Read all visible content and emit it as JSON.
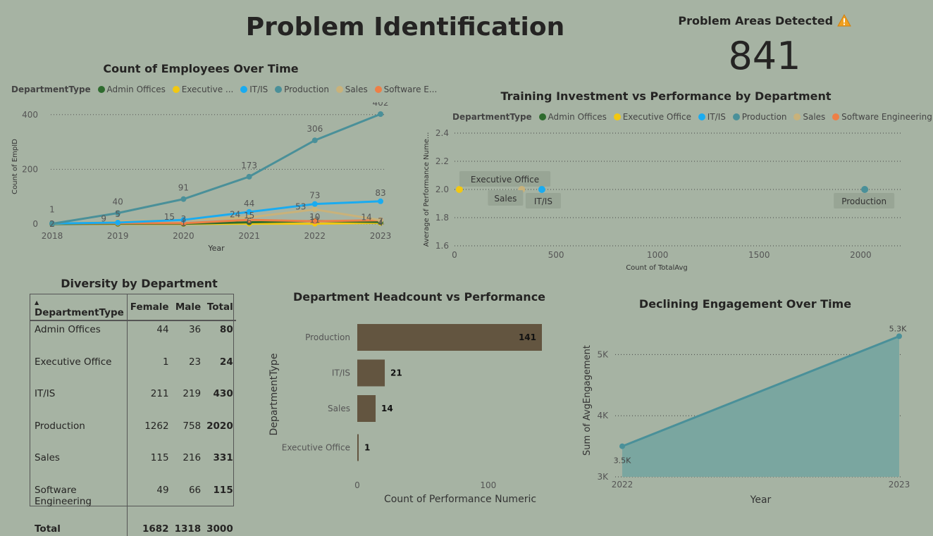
{
  "page_title": "Problem Identification",
  "kpi": {
    "label": "Problem Areas Detected",
    "icon": "warning-icon",
    "value": "841"
  },
  "colors": {
    "Admin Offices": "#2e6b2e",
    "Executive Office": "#f2c811",
    "IT/IS": "#1aabf0",
    "Production": "#4a9099",
    "Sales": "#c9b27a",
    "Software Engineering": "#ee7f46",
    "bar": "#635540",
    "area_line": "#4a9099",
    "area_fill": "#7aa6a0"
  },
  "chart_data": [
    {
      "id": "employees_over_time",
      "type": "line",
      "title": "Count of Employees Over Time",
      "legend_title": "DepartmentType",
      "legend_labels": [
        "Admin Offices",
        "Executive ...",
        "IT/IS",
        "Production",
        "Sales",
        "Software E..."
      ],
      "xlabel": "Year",
      "ylabel": "Count of EmpID",
      "x": [
        "2018",
        "2019",
        "2020",
        "2021",
        "2022",
        "2023"
      ],
      "yticks": [
        "0",
        "200",
        "400"
      ],
      "ylim": [
        0,
        420
      ],
      "series": [
        {
          "name": "Production",
          "values": [
            1,
            40,
            91,
            173,
            306,
            402
          ],
          "labels": [
            "1",
            "40",
            "91",
            "173",
            "306",
            "402"
          ]
        },
        {
          "name": "IT/IS",
          "values": [
            2,
            5,
            15,
            44,
            73,
            83
          ],
          "labels": [
            "",
            "5",
            "",
            "44",
            "73",
            "83"
          ]
        },
        {
          "name": "Sales",
          "values": [
            1,
            9,
            15,
            24,
            53,
            14
          ],
          "labels": [
            "",
            "9",
            "15",
            "24",
            "53",
            "14"
          ]
        },
        {
          "name": "Software Engineering",
          "values": [
            2,
            3,
            3,
            15,
            10,
            14
          ],
          "labels": [
            "2",
            "",
            "3",
            "15",
            "10",
            ""
          ]
        },
        {
          "name": "Admin Offices",
          "values": [
            0,
            1,
            1,
            6,
            11,
            7
          ],
          "labels": [
            "",
            "",
            "1",
            "6",
            "11",
            "7"
          ]
        },
        {
          "name": "Executive Office",
          "values": [
            0,
            0,
            0,
            1,
            1,
            4
          ],
          "labels": [
            "",
            "",
            "",
            "",
            "",
            "4"
          ]
        }
      ]
    },
    {
      "id": "training_vs_performance",
      "type": "scatter",
      "title": "Training Investment vs Performance by Department",
      "legend_title": "DepartmentType",
      "legend_labels": [
        "Admin Offices",
        "Executive Office",
        "IT/IS",
        "Production",
        "Sales",
        "Software Engineering"
      ],
      "xlabel": "Count of TotalAvg",
      "ylabel": "Average of Performance Nume...",
      "xticks": [
        "0",
        "500",
        "1000",
        "1500",
        "2000"
      ],
      "yticks": [
        "1.6",
        "1.8",
        "2.0",
        "2.2",
        "2.4"
      ],
      "xlim": [
        0,
        2200
      ],
      "ylim": [
        1.6,
        2.4
      ],
      "points": [
        {
          "name": "Executive Office",
          "x": 24,
          "y": 2.0,
          "label": "Executive Office"
        },
        {
          "name": "Sales",
          "x": 331,
          "y": 2.0,
          "label": "Sales"
        },
        {
          "name": "IT/IS",
          "x": 430,
          "y": 2.0,
          "label": "IT/IS"
        },
        {
          "name": "Production",
          "x": 2020,
          "y": 2.0,
          "label": "Production"
        }
      ]
    },
    {
      "id": "diversity_by_department",
      "type": "table",
      "title": "Diversity by Department",
      "columns": [
        "DepartmentType",
        "Female",
        "Male",
        "Total"
      ],
      "rows": [
        [
          "Admin Offices",
          "44",
          "36",
          "80"
        ],
        [
          "Executive Office",
          "1",
          "23",
          "24"
        ],
        [
          "IT/IS",
          "211",
          "219",
          "430"
        ],
        [
          "Production",
          "1262",
          "758",
          "2020"
        ],
        [
          "Sales",
          "115",
          "216",
          "331"
        ],
        [
          "Software Engineering",
          "49",
          "66",
          "115"
        ]
      ],
      "total": [
        "Total",
        "1682",
        "1318",
        "3000"
      ]
    },
    {
      "id": "headcount_vs_performance",
      "type": "bar",
      "orientation": "horizontal",
      "title": "Department Headcount vs Performance",
      "xlabel": "Count of Performance Numeric",
      "ylabel": "DepartmentType",
      "categories": [
        "Production",
        "IT/IS",
        "Sales",
        "Executive Office"
      ],
      "values": [
        141,
        21,
        14,
        1
      ],
      "xticks": [
        "0",
        "100"
      ],
      "xlim": [
        0,
        141
      ]
    },
    {
      "id": "engagement_over_time",
      "type": "area",
      "title": "Declining Engagement Over Time",
      "xlabel": "Year",
      "ylabel": "Sum of AvgEngagement",
      "x": [
        "2022",
        "2023"
      ],
      "values": [
        3500,
        5300
      ],
      "labels": [
        "3.5K",
        "5.3K"
      ],
      "yticks": [
        "3K",
        "4K",
        "5K"
      ],
      "ylim": [
        3000,
        5500
      ]
    }
  ]
}
